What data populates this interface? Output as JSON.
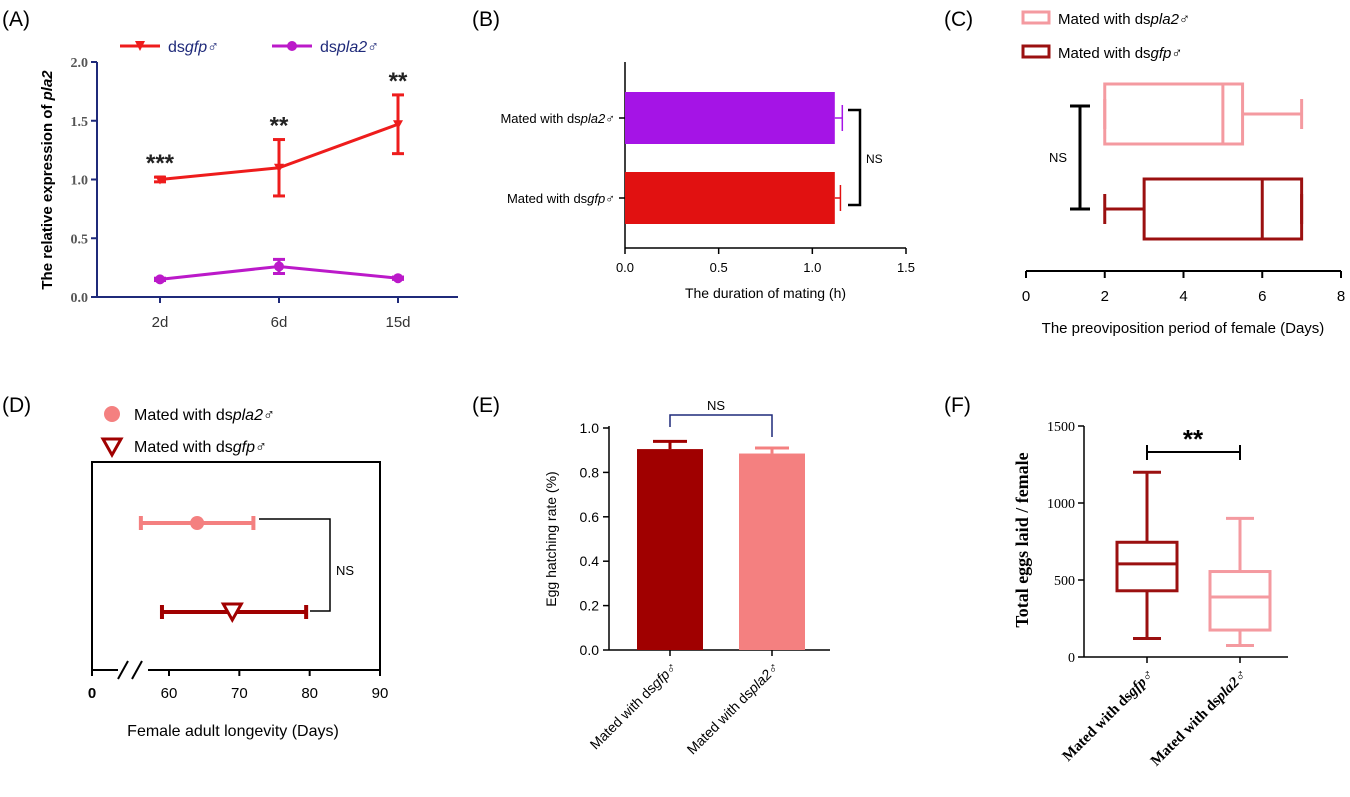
{
  "panels": {
    "A": {
      "label": "(A)"
    },
    "B": {
      "label": "(B)"
    },
    "C": {
      "label": "(C)"
    },
    "D": {
      "label": "(D)"
    },
    "E": {
      "label": "(E)"
    },
    "F": {
      "label": "(F)"
    }
  },
  "colors": {
    "red": "#ee1c1c",
    "purple": "#bb19c9",
    "navy": "#1f2a7a",
    "bar_purple": "#a514e6",
    "bar_red": "#e11111",
    "dark_red": "#a00000",
    "pink": "#f48080",
    "box_dark": "#9b1010",
    "box_pink": "#f49aa0",
    "black": "#000000"
  },
  "chart_data": [
    {
      "panel": "A",
      "type": "line",
      "ylabel_prefix": "The relative expression of ",
      "ylabel_italic": "pla2",
      "categories": [
        "2d",
        "6d",
        "15d"
      ],
      "ylim": [
        0,
        2.0
      ],
      "yticks": [
        "0.0",
        "0.5",
        "1.0",
        "1.5",
        "2.0"
      ],
      "series": [
        {
          "name_prefix": "ds",
          "name_italic": "gfp",
          "name_suffix": "♂",
          "values": [
            1.0,
            1.1,
            1.47
          ],
          "errors": [
            0.02,
            0.24,
            0.25
          ],
          "significance": [
            "***",
            "**",
            "**"
          ]
        },
        {
          "name_prefix": "ds",
          "name_italic": "pla2",
          "name_suffix": "♂",
          "values": [
            0.15,
            0.26,
            0.16
          ],
          "errors": [
            0.01,
            0.06,
            0.01
          ]
        }
      ]
    },
    {
      "panel": "B",
      "type": "bar",
      "orientation": "horizontal",
      "xlabel": "The duration of mating (h)",
      "xlim": [
        0,
        1.5
      ],
      "xticks": [
        "0.0",
        "0.5",
        "1.0",
        "1.5"
      ],
      "categories": [
        {
          "prefix": "Mated with ds",
          "italic": "pla2",
          "suffix": "♂"
        },
        {
          "prefix": "Mated with ds",
          "italic": "gfp",
          "suffix": "♂"
        }
      ],
      "values": [
        1.12,
        1.12
      ],
      "errors": [
        0.04,
        0.03
      ],
      "annotation": "NS"
    },
    {
      "panel": "C",
      "type": "box",
      "orientation": "horizontal",
      "xlabel": "The preoviposition period of female (Days)",
      "xlim": [
        0,
        8
      ],
      "xticks": [
        "0",
        "2",
        "4",
        "6",
        "8"
      ],
      "series": [
        {
          "prefix": "Mated with ds",
          "italic": "pla2",
          "suffix": "♂",
          "min": 2,
          "q1": 2,
          "median": 5,
          "q3": 5.5,
          "max": 7
        },
        {
          "prefix": "Mated with ds",
          "italic": "gfp",
          "suffix": "♂",
          "min": 2,
          "q1": 3,
          "median": 6,
          "q3": 7,
          "max": 7
        }
      ],
      "annotation": "NS"
    },
    {
      "panel": "D",
      "type": "scatter",
      "orientation": "horizontal",
      "xlabel": "Female adult longevity (Days)",
      "xticks": [
        "0",
        "60",
        "70",
        "80",
        "90"
      ],
      "xlim": [
        50,
        90
      ],
      "series": [
        {
          "prefix": "Mated with ds",
          "italic": "pla2",
          "suffix": "♂",
          "mean": 64,
          "low": 56,
          "high": 72
        },
        {
          "prefix": "Mated with ds",
          "italic": "gfp",
          "suffix": "♂",
          "mean": 69,
          "low": 59,
          "high": 79.5
        }
      ],
      "annotation": "NS"
    },
    {
      "panel": "E",
      "type": "bar",
      "ylabel": "Egg hatching rate (%)",
      "ylim": [
        0,
        1.0
      ],
      "yticks": [
        "0.0",
        "0.2",
        "0.4",
        "0.6",
        "0.8",
        "1.0"
      ],
      "categories": [
        {
          "prefix": "Mated with ds",
          "italic": "gfp",
          "suffix": "♂"
        },
        {
          "prefix": "Mated with ds",
          "italic": "pla2",
          "suffix": "♂"
        }
      ],
      "values": [
        0.905,
        0.885
      ],
      "errors": [
        0.035,
        0.025
      ],
      "annotation": "NS"
    },
    {
      "panel": "F",
      "type": "box",
      "ylabel": "Total eggs laid / female",
      "ylim": [
        0,
        1500
      ],
      "yticks": [
        "0",
        "500",
        "1000",
        "1500"
      ],
      "series": [
        {
          "prefix": "Mated with ds",
          "italic": "gfp",
          "suffix": "♂",
          "min": 120,
          "q1": 430,
          "median": 605,
          "q3": 745,
          "max": 1200
        },
        {
          "prefix": "Mated with ds",
          "italic": "pla2",
          "suffix": "♂",
          "min": 75,
          "q1": 175,
          "median": 390,
          "q3": 555,
          "max": 900
        }
      ],
      "annotation": "**"
    }
  ]
}
